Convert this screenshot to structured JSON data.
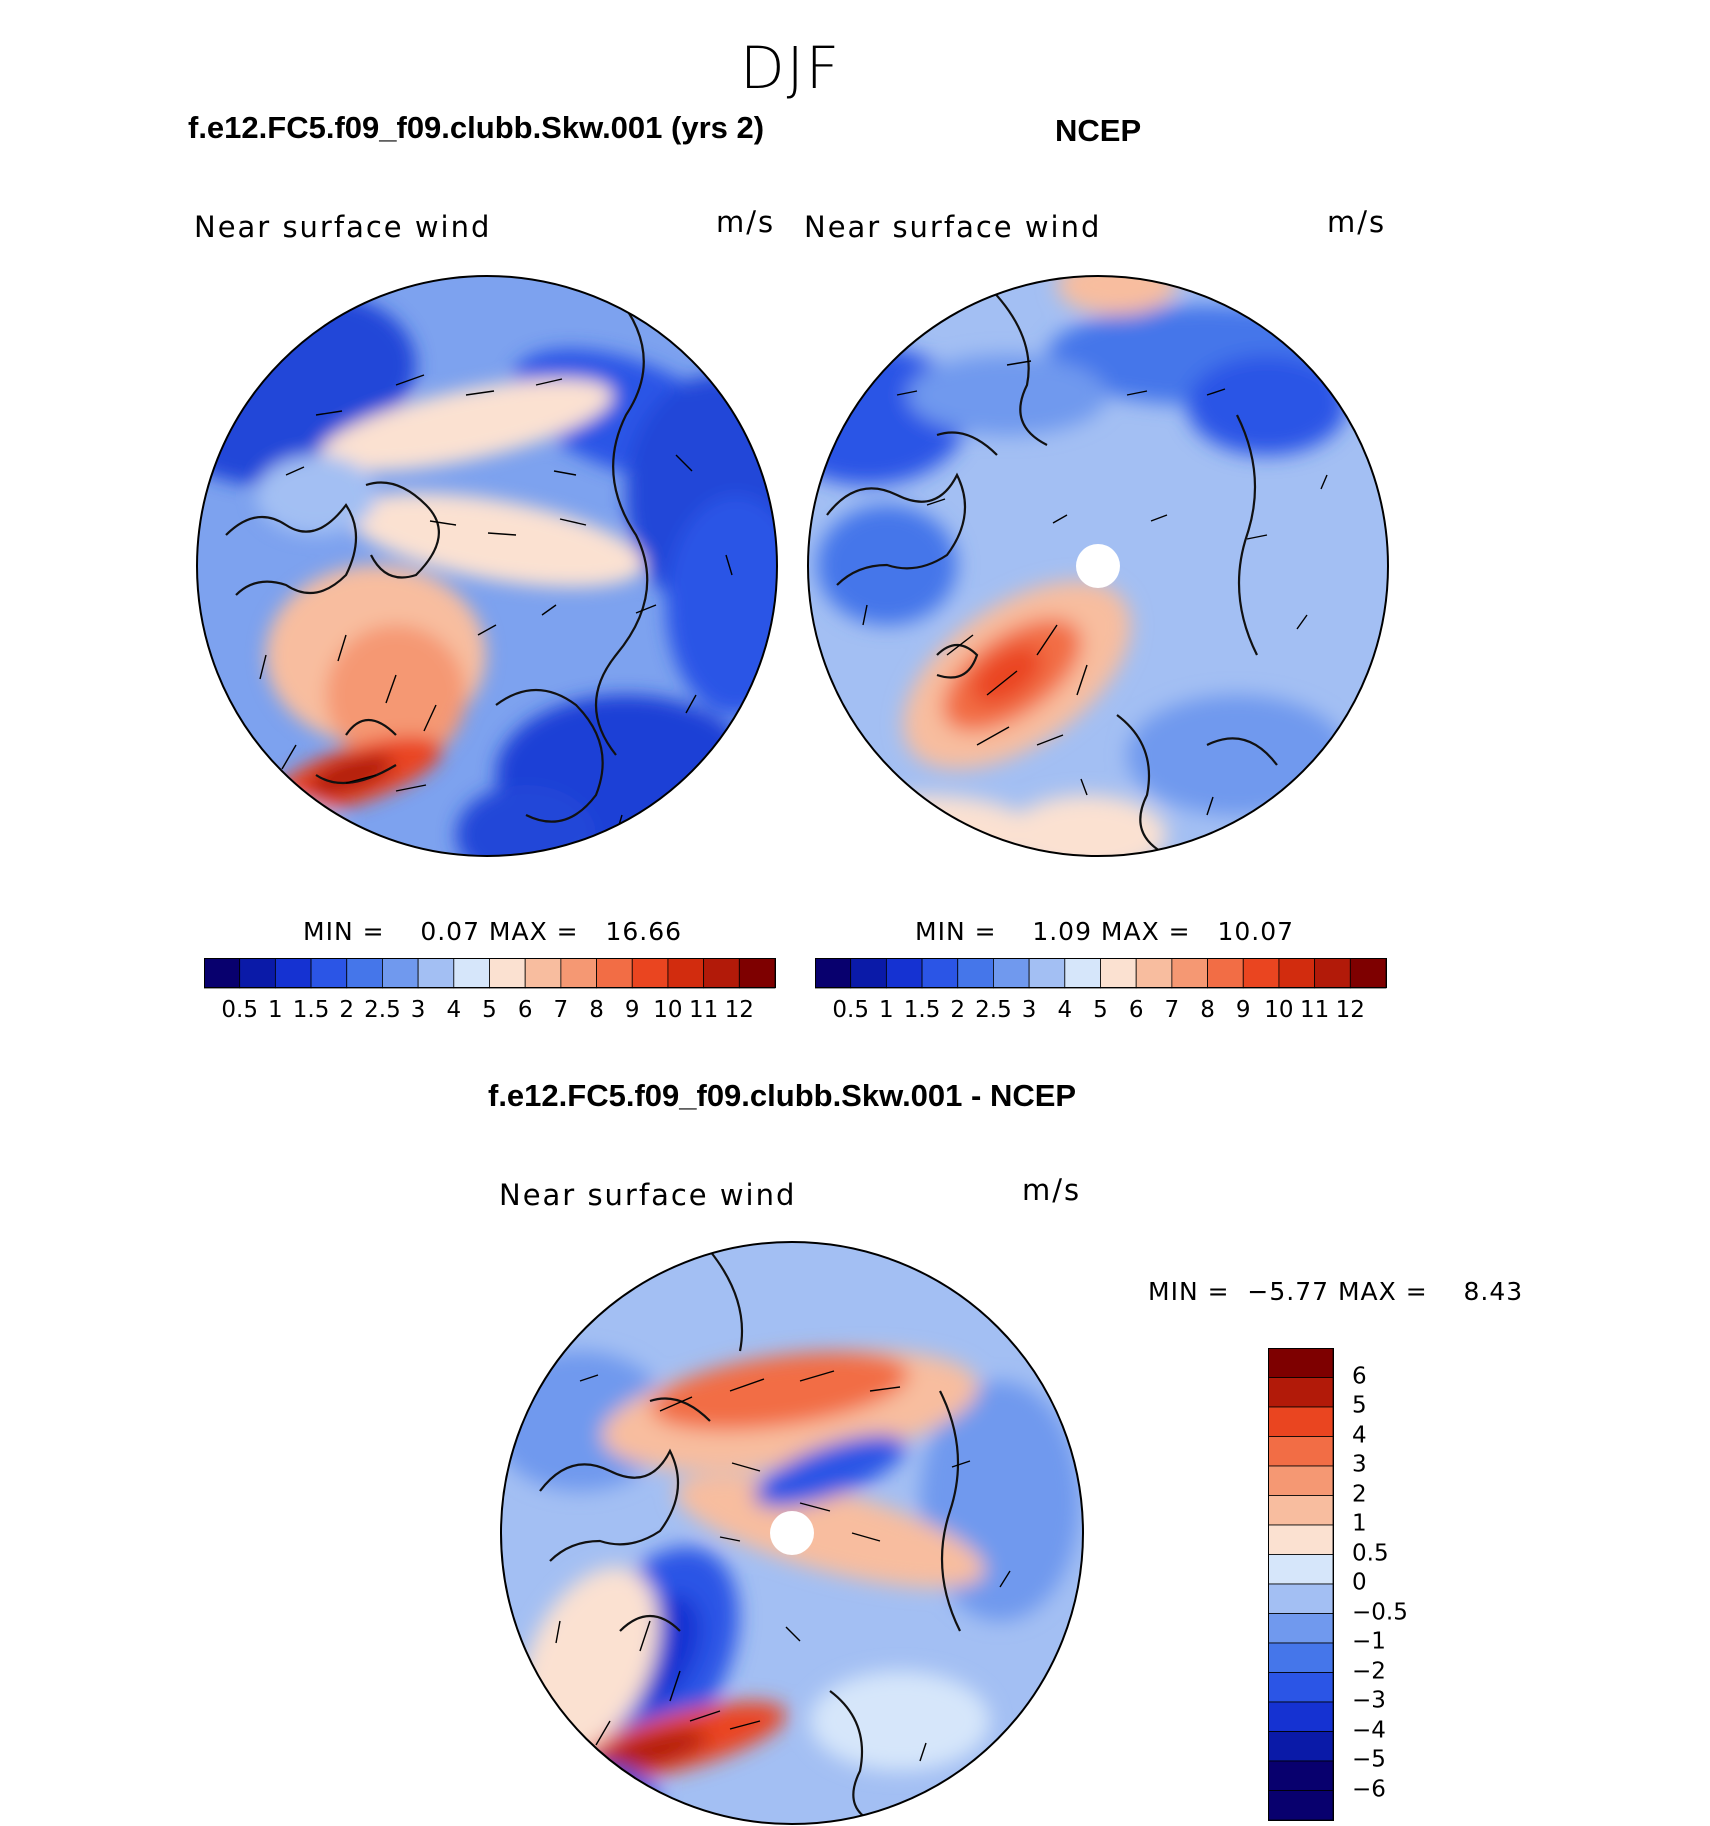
{
  "figure": {
    "season": "DJF"
  },
  "panels": [
    {
      "title": "f.e12.FC5.f09_f09.clubb.Skw.001 (yrs 2)",
      "variable": "Near surface wind",
      "units": "m/s",
      "stats_text": "MIN =    0.07 MAX =   16.66",
      "stats": {
        "min": 0.07,
        "max": 16.66
      }
    },
    {
      "title": "NCEP",
      "variable": "Near surface wind",
      "units": "m/s",
      "stats_text": "MIN =    1.09 MAX =   10.07",
      "stats": {
        "min": 1.09,
        "max": 10.07
      }
    },
    {
      "title": "f.e12.FC5.f09_f09.clubb.Skw.001 - NCEP",
      "variable": "Near surface wind",
      "units": "m/s",
      "stats_text": "MIN =  −5.77 MAX =    8.43",
      "stats": {
        "min": -5.77,
        "max": 8.43
      }
    }
  ],
  "colorbars": {
    "absolute": {
      "labels": [
        "0.5",
        "1",
        "1.5",
        "2",
        "2.5",
        "3",
        "4",
        "5",
        "6",
        "7",
        "8",
        "9",
        "10",
        "11",
        "12"
      ],
      "colors": [
        "#08006e",
        "#0a1aa8",
        "#1532d2",
        "#2b55e6",
        "#4576ea",
        "#7099ee",
        "#a3bff3",
        "#d6e6fa",
        "#fbe1d1",
        "#f8bd9f",
        "#f59873",
        "#f26d45",
        "#ea4520",
        "#d22c0e",
        "#b21a09",
        "#7e0000"
      ]
    },
    "difference": {
      "labels": [
        "6",
        "5",
        "4",
        "3",
        "2",
        "1",
        "0.5",
        "0",
        "−0.5",
        "−1",
        "−2",
        "−3",
        "−4",
        "−5",
        "−6"
      ],
      "colors": [
        "#7e0000",
        "#b21a09",
        "#ea4520",
        "#f26d45",
        "#f59873",
        "#f8bd9f",
        "#fbe1d1",
        "#d6e6fa",
        "#a3bff3",
        "#7099ee",
        "#4576ea",
        "#2b55e6",
        "#1532d2",
        "#0a1aa8",
        "#08006e",
        "#08006e"
      ]
    }
  }
}
